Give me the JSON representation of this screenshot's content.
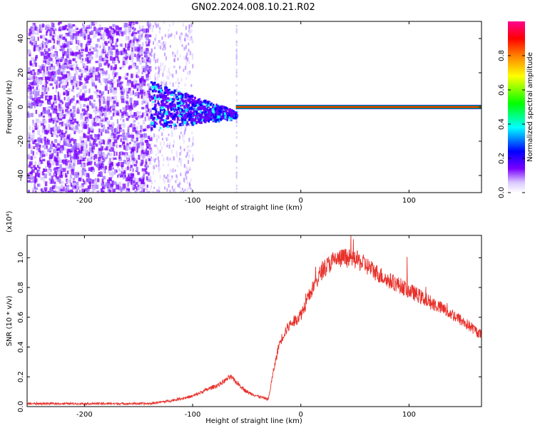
{
  "title": "GN02.2024.008.10.21.R02",
  "chart_data": [
    {
      "type": "heatmap",
      "xlabel": "Height of straight line (km)",
      "ylabel": "Frequency (Hz)",
      "xlim": [
        -253,
        167
      ],
      "ylim": [
        -50,
        50
      ],
      "x_ticks": [
        -200,
        -100,
        0,
        100
      ],
      "y_ticks": [
        -40,
        -20,
        0,
        20,
        40
      ],
      "colorbar": {
        "label": "Normalized spectral amplitude",
        "range": [
          0,
          1
        ],
        "ticks": [
          "0.0",
          "0.2",
          "0.4",
          "0.6",
          "0.8"
        ],
        "colormap": [
          "#ffffff",
          "#6a00ff",
          "#0000ff",
          "#00ffff",
          "#00ff00",
          "#ffff00",
          "#ff8000",
          "#ff0000",
          "#ff0080"
        ]
      },
      "features": {
        "noise_region_x": [
          -253,
          -140
        ],
        "signal_onset_x": -140,
        "carrier_frequency_hz": 0,
        "carrier_line_x": [
          -60,
          167
        ]
      }
    },
    {
      "type": "line",
      "xlabel": "Height of straight line (km)",
      "ylabel": "SNR (10 * v/v)",
      "yscale_label": "(x10⁴)",
      "xlim": [
        -253,
        167
      ],
      "ylim": [
        0,
        1.15
      ],
      "x_ticks": [
        -200,
        -100,
        0,
        100
      ],
      "y_ticks": [
        "0.0",
        "0.2",
        "0.4",
        "0.6",
        "0.8",
        "1.0"
      ],
      "series": [
        {
          "color": "#e8302a",
          "x": [
            -253,
            -200,
            -140,
            -120,
            -100,
            -85,
            -75,
            -65,
            -50,
            -40,
            -30,
            -25,
            -20,
            -15,
            -10,
            -5,
            0,
            10,
            20,
            30,
            40,
            50,
            60,
            70,
            80,
            90,
            100,
            110,
            120,
            130,
            140,
            150,
            160,
            167
          ],
          "y": [
            0.02,
            0.02,
            0.02,
            0.04,
            0.07,
            0.12,
            0.15,
            0.2,
            0.1,
            0.07,
            0.05,
            0.25,
            0.42,
            0.5,
            0.55,
            0.58,
            0.62,
            0.78,
            0.92,
            0.98,
            1.0,
            0.99,
            0.95,
            0.9,
            0.85,
            0.82,
            0.78,
            0.74,
            0.7,
            0.66,
            0.62,
            0.57,
            0.52,
            0.48
          ]
        }
      ]
    }
  ]
}
